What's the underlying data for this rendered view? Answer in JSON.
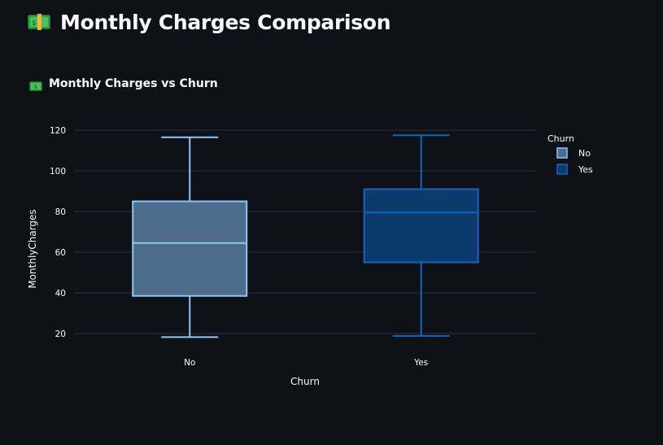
{
  "page": {
    "title": "Monthly Charges Comparison",
    "title_icon": "money-banknote-icon",
    "subheader": "Monthly Charges vs Churn",
    "subheader_icon": "money-banknote-icon"
  },
  "chart_data": {
    "type": "box",
    "title": "",
    "xlabel": "Churn",
    "ylabel": "MonthlyCharges",
    "categories": [
      "No",
      "Yes"
    ],
    "ylim": [
      14,
      124
    ],
    "yticks": [
      20,
      40,
      60,
      80,
      100,
      120
    ],
    "grid": true,
    "legend": {
      "title": "Churn",
      "placement": "top-right",
      "entries": [
        "No",
        "Yes"
      ]
    },
    "series": [
      {
        "name": "No",
        "min": 18.25,
        "q1": 38.5,
        "median": 64.5,
        "q3": 85,
        "max": 116.5,
        "color": "#8ec8f5",
        "fill": "#4e6c8c"
      },
      {
        "name": "Yes",
        "min": 18.85,
        "q1": 55,
        "median": 79.5,
        "q3": 91,
        "max": 117.5,
        "color": "#1565c0",
        "fill": "#0b3a6c"
      }
    ],
    "colors": {
      "grid": "#2c3038",
      "text": "#fafafa",
      "tick_text": "#fafafa"
    }
  }
}
